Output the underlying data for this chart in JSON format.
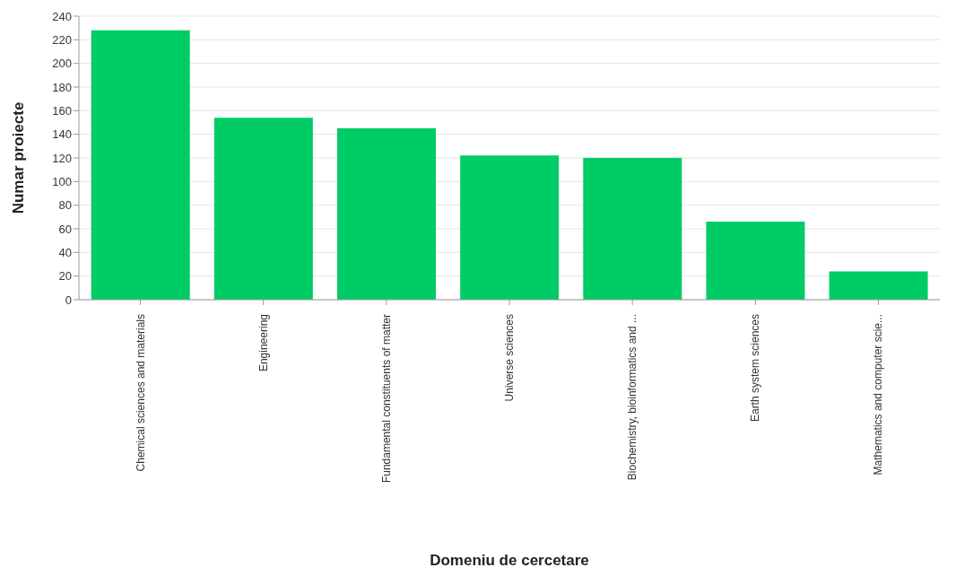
{
  "chart_data": {
    "type": "bar",
    "xlabel": "Domeniu de cercetare",
    "ylabel": "Numar proiecte",
    "categories": [
      "Chemical sciences and materials",
      "Engineering",
      "Fundamental constituents of matter",
      "Universe sciences",
      "Biochemistry, bioinformatics and ...",
      "Earth system sciences",
      "Mathematics and computer scie..."
    ],
    "values": [
      228,
      154,
      145,
      122,
      120,
      66,
      24
    ],
    "color": "#00cc66",
    "ylim": [
      0,
      240
    ],
    "yticks": [
      0,
      20,
      40,
      60,
      80,
      100,
      120,
      140,
      160,
      180,
      200,
      220,
      240
    ],
    "grid": "y"
  }
}
